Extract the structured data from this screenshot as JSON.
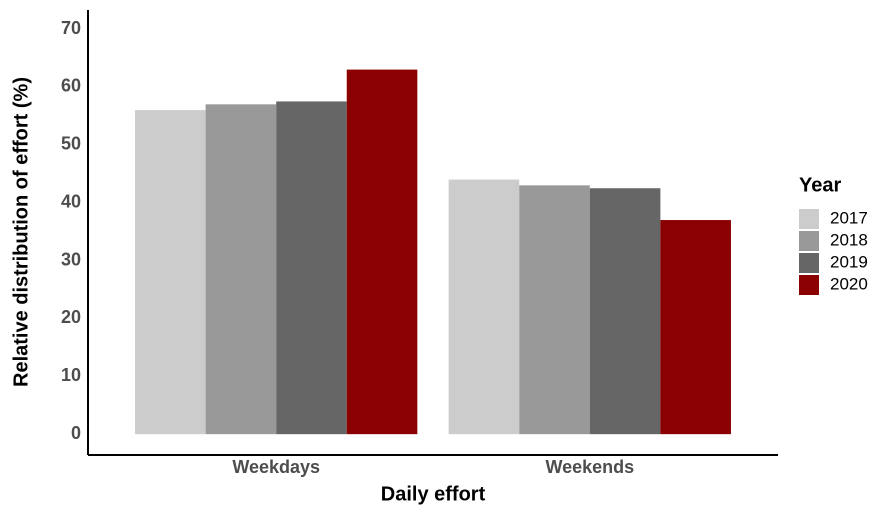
{
  "chart_data": {
    "type": "bar",
    "x_label": "Daily effort",
    "y_label": "Relative distribution of effort (%)",
    "legend_title": "Year",
    "categories": [
      "Weekdays",
      "Weekends"
    ],
    "series": [
      {
        "name": "2017",
        "color": "#cccccc",
        "values": [
          56,
          44
        ]
      },
      {
        "name": "2018",
        "color": "#999999",
        "values": [
          57,
          43
        ]
      },
      {
        "name": "2019",
        "color": "#666666",
        "values": [
          57.5,
          42.5
        ]
      },
      {
        "name": "2020",
        "color": "#8b0000",
        "values": [
          63,
          37
        ]
      }
    ],
    "ylim": [
      -3.6,
      73.3
    ],
    "yticks": [
      0,
      10,
      20,
      30,
      40,
      50,
      60,
      70
    ],
    "legend_position": "right",
    "grid": false
  }
}
